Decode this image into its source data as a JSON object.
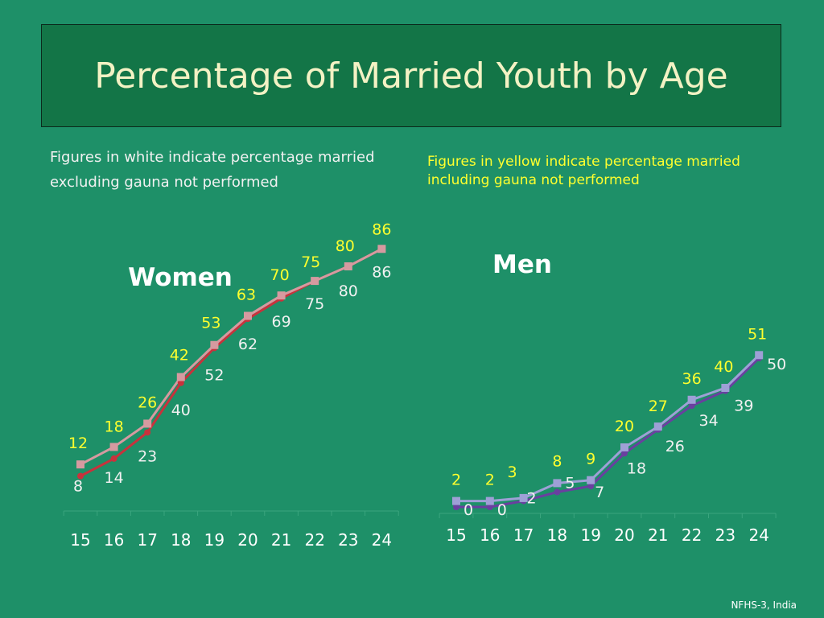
{
  "title": "Percentage of Married Youth by Age",
  "note_white": "Figures in white indicate percentage married excluding gauna not performed",
  "note_yellow": "Figures in yellow indicate percentage married including gauna not performed",
  "footer": "NFHS-3, India",
  "colors": {
    "background": "#1e9068",
    "title_box": "#137547",
    "title_text": "#f3f2c4",
    "white_label": "#f1f1f1",
    "yellow_label": "#ffff2e",
    "women_excl_line": "#c8323c",
    "women_incl_line": "#d69aa0",
    "men_excl_line": "#6a3fa0",
    "men_incl_line": "#9ea0d6"
  },
  "chart_data": [
    {
      "type": "line",
      "title": "Women",
      "categories": [
        "15",
        "16",
        "17",
        "18",
        "19",
        "20",
        "21",
        "22",
        "23",
        "24"
      ],
      "series": [
        {
          "name": "excluding gauna not performed",
          "label_color": "white",
          "values": [
            8,
            14,
            23,
            40,
            52,
            62,
            69,
            75,
            80,
            86
          ]
        },
        {
          "name": "including gauna not performed",
          "label_color": "yellow",
          "values": [
            12,
            18,
            26,
            42,
            53,
            63,
            70,
            75,
            80,
            86
          ]
        }
      ],
      "ylim": [
        0,
        100
      ],
      "xlabel": "",
      "ylabel": "",
      "grid": false
    },
    {
      "type": "line",
      "title": "Men",
      "categories": [
        "15",
        "16",
        "17",
        "18",
        "19",
        "20",
        "21",
        "22",
        "23",
        "24"
      ],
      "series": [
        {
          "name": "excluding gauna not performed",
          "label_color": "white",
          "values": [
            0,
            0,
            2,
            5,
            7,
            18,
            26,
            34,
            39,
            50
          ]
        },
        {
          "name": "including gauna not performed",
          "label_color": "yellow",
          "values": [
            2,
            2,
            3,
            8,
            9,
            20,
            27,
            36,
            40,
            51
          ]
        }
      ],
      "ylim": [
        0,
        100
      ],
      "xlabel": "",
      "ylabel": "",
      "grid": false
    }
  ]
}
